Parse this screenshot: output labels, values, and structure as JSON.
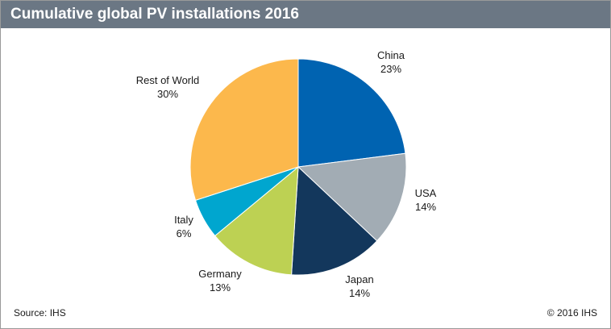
{
  "header": {
    "title": "Cumulative global PV installations 2016"
  },
  "footer": {
    "source": "Source: IHS",
    "copyright": "© 2016 IHS"
  },
  "chart_data": {
    "type": "pie",
    "title": "Cumulative global PV installations 2016",
    "start_angle_deg": 0,
    "direction": "clockwise",
    "slices": [
      {
        "name": "China",
        "value": 23,
        "label": "23%",
        "color": "#0063b1"
      },
      {
        "name": "USA",
        "value": 14,
        "label": "14%",
        "color": "#a2acb4"
      },
      {
        "name": "Japan",
        "value": 14,
        "label": "14%",
        "color": "#13375c"
      },
      {
        "name": "Germany",
        "value": 13,
        "label": "13%",
        "color": "#bdd153"
      },
      {
        "name": "Italy",
        "value": 6,
        "label": "6%",
        "color": "#00a6cf"
      },
      {
        "name": "Rest of World",
        "value": 30,
        "label": "30%",
        "color": "#fcb84c"
      }
    ]
  }
}
